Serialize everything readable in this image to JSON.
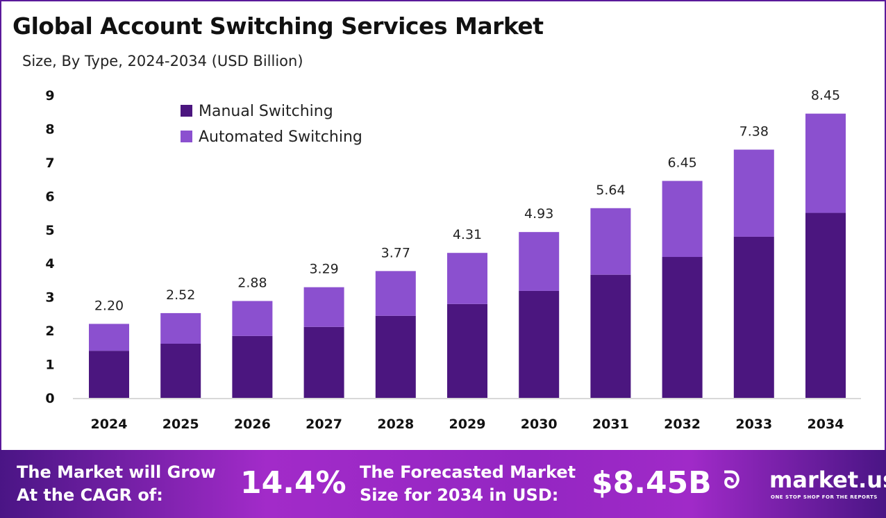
{
  "chart_data": {
    "type": "bar",
    "stacked": true,
    "title": "Global Account Switching Services Market",
    "subtitle": "Size, By Type, 2024-2034 (USD Billion)",
    "categories": [
      "2024",
      "2025",
      "2026",
      "2027",
      "2028",
      "2029",
      "2030",
      "2031",
      "2032",
      "2033",
      "2034"
    ],
    "series": [
      {
        "name": "Manual Switching",
        "color": "#4b167f",
        "values": [
          1.4,
          1.61,
          1.84,
          2.11,
          2.44,
          2.79,
          3.18,
          3.66,
          4.19,
          4.79,
          5.5
        ]
      },
      {
        "name": "Automated Switching",
        "color": "#8b50cf",
        "values": [
          0.8,
          0.91,
          1.04,
          1.18,
          1.33,
          1.52,
          1.75,
          1.98,
          2.26,
          2.59,
          2.95
        ]
      }
    ],
    "totals": [
      "2.20",
      "2.52",
      "2.88",
      "3.29",
      "3.77",
      "4.31",
      "4.93",
      "5.64",
      "6.45",
      "7.38",
      "8.45"
    ],
    "yticks": [
      "0",
      "1",
      "2",
      "3",
      "4",
      "5",
      "6",
      "7",
      "8",
      "9"
    ],
    "ylim": [
      0,
      9
    ],
    "legend_position": "top-left"
  },
  "footer": {
    "cagr_label_1": "The Market will Grow",
    "cagr_label_2": "At the CAGR of:",
    "cagr_value": "14.4%",
    "forecast_label_1": "The Forecasted Market",
    "forecast_label_2": "Size for 2034 in USD:",
    "forecast_value": "$8.45B",
    "brand": "market.us",
    "tagline": "ONE STOP SHOP FOR THE REPORTS"
  }
}
